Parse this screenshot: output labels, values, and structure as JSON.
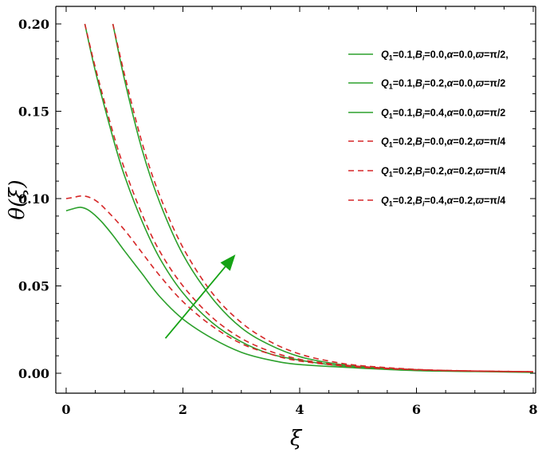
{
  "chart_data": {
    "type": "line",
    "title": "",
    "xlabel": "ξ",
    "ylabel": "θ(ξ)",
    "xlim": [
      0,
      8
    ],
    "ylim": [
      0,
      0.2
    ],
    "x_ticks": [
      "0",
      "2",
      "4",
      "6",
      "8"
    ],
    "y_ticks": [
      "0.00",
      "0.05",
      "0.10",
      "0.15",
      "0.20"
    ],
    "legend_position": "top-right",
    "grid": false,
    "colors": {
      "green": "#2ca02c",
      "red": "#d62728",
      "axis": "#000000"
    },
    "series": [
      {
        "name": "Q1=0.1,Bi=0.0,α=0.0,ϖ=π/2,",
        "legend": {
          "Q": "0.1",
          "B": "0.0",
          "alpha": "0.0",
          "pi": "π/2",
          "trail": ","
        },
        "color": "#2ca02c",
        "style": "solid",
        "x": [
          0,
          0.1,
          0.25,
          0.4,
          0.6,
          0.8,
          1.0,
          1.3,
          1.6,
          2.0,
          2.5,
          3.0,
          3.5,
          4.0,
          5.0,
          6.0,
          7.0,
          8.0
        ],
        "y": [
          0.093,
          0.094,
          0.095,
          0.093,
          0.087,
          0.079,
          0.07,
          0.057,
          0.044,
          0.031,
          0.02,
          0.012,
          0.0075,
          0.005,
          0.003,
          0.0015,
          0.001,
          0.0005
        ]
      },
      {
        "name": "Q1=0.1,Bi=0.2,α=0.0,ϖ=π/2",
        "legend": {
          "Q": "0.1",
          "B": "0.2",
          "alpha": "0.0",
          "pi": "π/2",
          "trail": ""
        },
        "color": "#2ca02c",
        "style": "solid",
        "x": [
          0.32,
          0.5,
          0.8,
          1.0,
          1.3,
          1.6,
          2.0,
          2.5,
          3.0,
          3.5,
          4.0,
          4.5,
          5.0,
          6.0,
          7.0,
          8.0
        ],
        "y": [
          0.2,
          0.173,
          0.135,
          0.113,
          0.087,
          0.066,
          0.046,
          0.029,
          0.018,
          0.011,
          0.0075,
          0.005,
          0.0035,
          0.002,
          0.0012,
          0.0008
        ]
      },
      {
        "name": "Q1=0.1,Bi=0.4,α=0.0,ϖ=π/2",
        "legend": {
          "Q": "0.1",
          "B": "0.4",
          "alpha": "0.0",
          "pi": "π/2",
          "trail": ""
        },
        "color": "#2ca02c",
        "style": "solid",
        "x": [
          0.8,
          1.0,
          1.3,
          1.6,
          2.0,
          2.5,
          3.0,
          3.5,
          4.0,
          4.5,
          5.0,
          6.0,
          7.0,
          8.0
        ],
        "y": [
          0.2,
          0.168,
          0.128,
          0.098,
          0.068,
          0.043,
          0.026,
          0.016,
          0.0095,
          0.006,
          0.004,
          0.002,
          0.0012,
          0.0008
        ]
      },
      {
        "name": "Q1=0.2,Bi=0.0,α=0.2,ϖ=π/4",
        "legend": {
          "Q": "0.2",
          "B": "0.0",
          "alpha": "0.2",
          "pi": "π/4",
          "trail": ""
        },
        "color": "#d62728",
        "style": "dashed",
        "x": [
          0,
          0.1,
          0.3,
          0.5,
          0.7,
          1.0,
          1.3,
          1.6,
          2.0,
          2.5,
          3.0,
          3.5,
          4.0,
          5.0,
          6.0,
          7.0,
          8.0
        ],
        "y": [
          0.1,
          0.1005,
          0.1015,
          0.099,
          0.093,
          0.082,
          0.069,
          0.056,
          0.041,
          0.027,
          0.017,
          0.011,
          0.007,
          0.0035,
          0.002,
          0.0012,
          0.0008
        ]
      },
      {
        "name": "Q1=0.2,Bi=0.2,α=0.2,ϖ=π/4",
        "legend": {
          "Q": "0.2",
          "B": "0.2",
          "alpha": "0.2",
          "pi": "π/4",
          "trail": ""
        },
        "color": "#d62728",
        "style": "dashed",
        "x": [
          0.32,
          0.5,
          0.8,
          1.0,
          1.3,
          1.6,
          2.0,
          2.5,
          3.0,
          3.5,
          4.0,
          4.5,
          5.0,
          6.0,
          7.0,
          8.0
        ],
        "y": [
          0.2,
          0.175,
          0.138,
          0.117,
          0.091,
          0.07,
          0.05,
          0.032,
          0.02,
          0.0125,
          0.008,
          0.0055,
          0.004,
          0.002,
          0.0013,
          0.0009
        ]
      },
      {
        "name": "Q1=0.2,Bi=0.4,α=0.2,ϖ=π/4",
        "legend": {
          "Q": "0.2",
          "B": "0.4",
          "alpha": "0.2",
          "pi": "π/4",
          "trail": ""
        },
        "color": "#d62728",
        "style": "dashed",
        "x": [
          0.8,
          1.0,
          1.3,
          1.6,
          2.0,
          2.5,
          3.0,
          3.5,
          4.0,
          4.5,
          5.0,
          6.0,
          7.0,
          8.0
        ],
        "y": [
          0.2,
          0.171,
          0.132,
          0.102,
          0.072,
          0.046,
          0.029,
          0.018,
          0.011,
          0.007,
          0.0045,
          0.0022,
          0.0013,
          0.0009
        ]
      }
    ],
    "annotations": [
      {
        "type": "arrow",
        "color": "#15a315",
        "from": [
          1.7,
          0.02
        ],
        "to": [
          2.9,
          0.068
        ]
      }
    ]
  }
}
